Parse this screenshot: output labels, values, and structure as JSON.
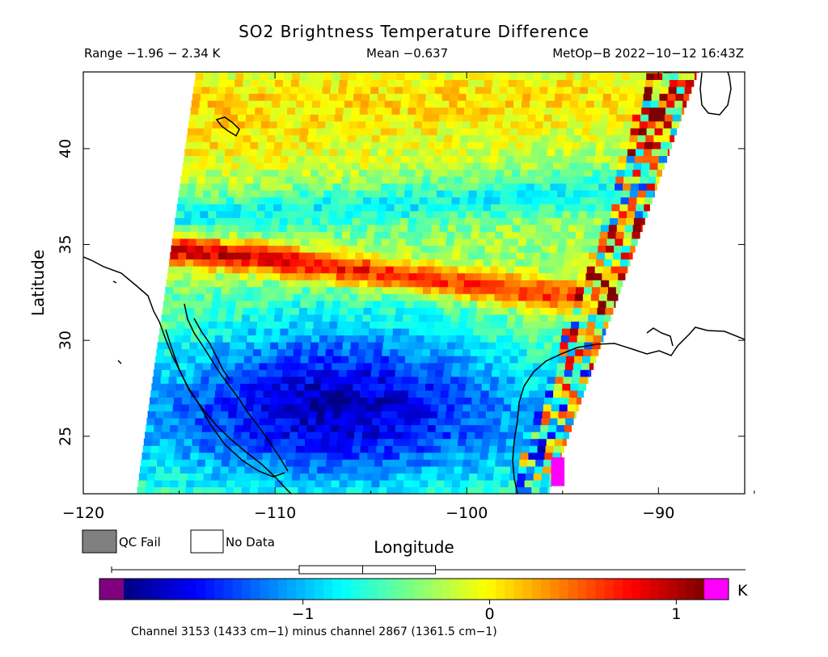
{
  "chart_data": {
    "type": "heatmap",
    "title": "SO2 Brightness Temperature Difference",
    "range_text": "Range −1.96 − 2.34 K",
    "mean_text": "Mean −0.637",
    "source_text": "MetOp−B 2022−10−12 16:43Z",
    "xlabel": "Longitude",
    "ylabel": "Latitude",
    "xlim": [
      -120,
      -85.5
    ],
    "ylim": [
      22,
      44
    ],
    "xticks": [
      -120,
      -110,
      -100,
      -90
    ],
    "xtick_labels": [
      "−120",
      "−110",
      "−100",
      "−90"
    ],
    "yticks": [
      25,
      30,
      35,
      40
    ],
    "ytick_labels": [
      "25",
      "30",
      "35",
      "40"
    ],
    "swath": {
      "left_edge_lon": [
        -117.2,
        -114.1
      ],
      "right_edge_lon": [
        -95.7,
        -87.9
      ]
    },
    "anomaly_bands": [
      {
        "feature": "warm band",
        "lat_west": 34.6,
        "lat_east": 31.8,
        "value": 1.0
      },
      {
        "feature": "cool band",
        "lat_west": 36.2,
        "lat_east": 37.8,
        "value": -1.0
      },
      {
        "feature": "cold region",
        "lat_center": 27,
        "lon_center": -107,
        "value": -1.4
      }
    ],
    "legend": {
      "qc_fail_label": "QC Fail",
      "no_data_label": "No Data",
      "qc_fail_color": "#808080",
      "no_data_color": "#ffffff"
    },
    "colorbar": {
      "vmin": -1.96,
      "vmax": 1.15,
      "ticks": [
        -1,
        0,
        1
      ],
      "tick_labels": [
        "−1",
        "0",
        "1"
      ],
      "unit": "K",
      "under_color": "#800080",
      "over_color": "#ff00ff",
      "box_plot": {
        "min": -1.96,
        "q1": -1.02,
        "median": -0.68,
        "q3": -0.29,
        "max": 2.34
      }
    },
    "footnote": "Channel 3153 (1433 cm−1) minus channel 2867 (1361.5 cm−1)"
  }
}
